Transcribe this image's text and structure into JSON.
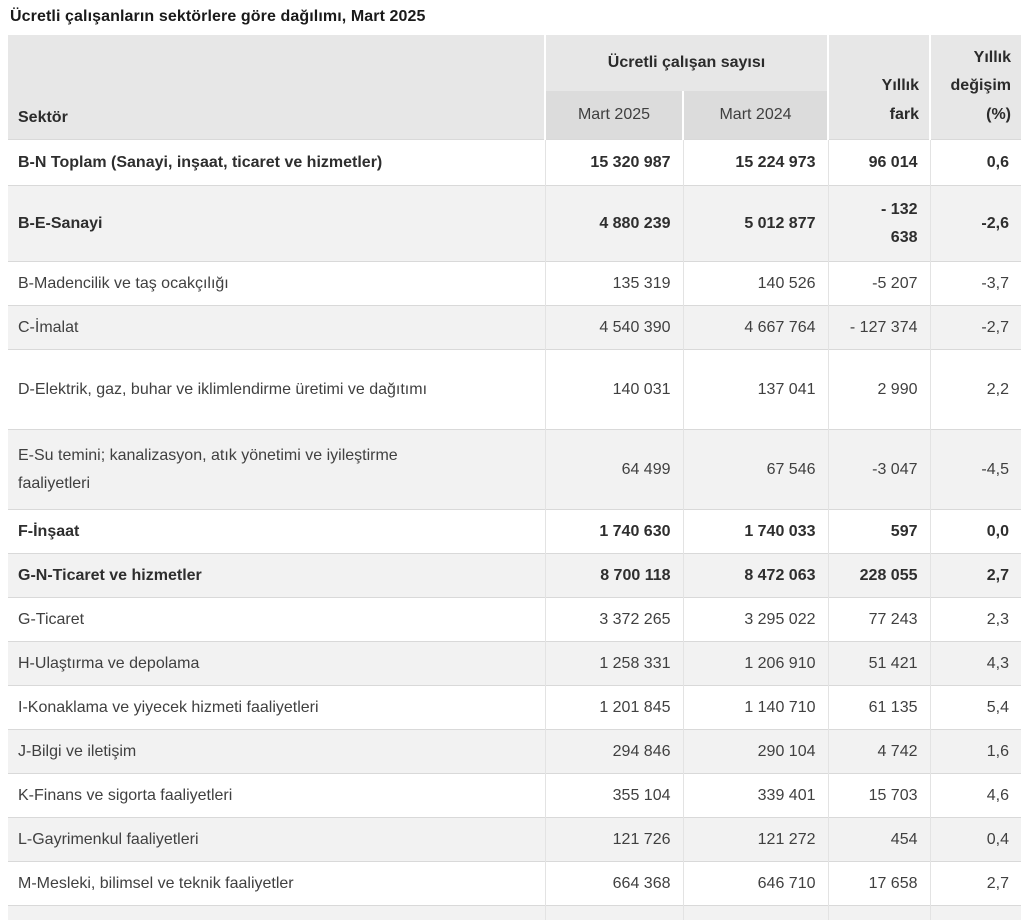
{
  "title": "Ücretli çalışanların sektörlere göre dağılımı, Mart 2025",
  "table": {
    "header": {
      "sector": "Sektör",
      "group": "Ücretli çalışan sayısı",
      "mart_2025": "Mart 2025",
      "mart_2024": "Mart 2024",
      "yillik_fark": "Yıllık\nfark",
      "yillik_degisim": "Yıllık\ndeğişim\n(%)"
    },
    "rows": [
      {
        "sector": "B-N Toplam (Sanayi, inşaat, ticaret ve hizmetler)",
        "mart_2025": "15 320 987",
        "mart_2024": "15 224 973",
        "yillik_fark": "96 014",
        "yillik_degisim": "0,6",
        "bold": true
      },
      {
        "sector": "B-E-Sanayi",
        "mart_2025": "4 880 239",
        "mart_2024": "5 012 877",
        "yillik_fark": "- 132\n638",
        "yillik_degisim": "-2,6",
        "bold": true
      },
      {
        "sector": "B-Madencilik ve taş ocakçılığı",
        "mart_2025": "135 319",
        "mart_2024": "140 526",
        "yillik_fark": "-5 207",
        "yillik_degisim": "-3,7",
        "bold": false
      },
      {
        "sector": "C-İmalat",
        "mart_2025": "4 540 390",
        "mart_2024": "4 667 764",
        "yillik_fark": "- 127 374",
        "yillik_degisim": "-2,7",
        "bold": false
      },
      {
        "sector": "D-Elektrik, gaz, buhar ve iklimlendirme üretimi ve dağıtımı",
        "mart_2025": "140 031",
        "mart_2024": "137 041",
        "yillik_fark": "2 990",
        "yillik_degisim": "2,2",
        "bold": false
      },
      {
        "sector": "E-Su temini; kanalizasyon, atık yönetimi ve iyileştirme faaliyetleri",
        "mart_2025": "64 499",
        "mart_2024": "67 546",
        "yillik_fark": "-3 047",
        "yillik_degisim": "-4,5",
        "bold": false
      },
      {
        "sector": "F-İnşaat",
        "mart_2025": "1 740 630",
        "mart_2024": "1 740 033",
        "yillik_fark": "597",
        "yillik_degisim": "0,0",
        "bold": true
      },
      {
        "sector": "G-N-Ticaret ve hizmetler",
        "mart_2025": "8 700 118",
        "mart_2024": "8 472 063",
        "yillik_fark": "228 055",
        "yillik_degisim": "2,7",
        "bold": true
      },
      {
        "sector": "G-Ticaret",
        "mart_2025": "3 372 265",
        "mart_2024": "3 295 022",
        "yillik_fark": "77 243",
        "yillik_degisim": "2,3",
        "bold": false
      },
      {
        "sector": "H-Ulaştırma ve depolama",
        "mart_2025": "1 258 331",
        "mart_2024": "1 206 910",
        "yillik_fark": "51 421",
        "yillik_degisim": "4,3",
        "bold": false
      },
      {
        "sector": "I-Konaklama ve yiyecek hizmeti faaliyetleri",
        "mart_2025": "1 201 845",
        "mart_2024": "1 140 710",
        "yillik_fark": "61 135",
        "yillik_degisim": "5,4",
        "bold": false
      },
      {
        "sector": "J-Bilgi ve iletişim",
        "mart_2025": "294 846",
        "mart_2024": "290 104",
        "yillik_fark": "4 742",
        "yillik_degisim": "1,6",
        "bold": false
      },
      {
        "sector": "K-Finans ve sigorta faaliyetleri",
        "mart_2025": "355 104",
        "mart_2024": "339 401",
        "yillik_fark": "15 703",
        "yillik_degisim": "4,6",
        "bold": false
      },
      {
        "sector": "L-Gayrimenkul faaliyetleri",
        "mart_2025": "121 726",
        "mart_2024": "121 272",
        "yillik_fark": "454",
        "yillik_degisim": "0,4",
        "bold": false
      },
      {
        "sector": "M-Mesleki, bilimsel ve teknik faaliyetler",
        "mart_2025": "664 368",
        "mart_2024": "646 710",
        "yillik_fark": "17 658",
        "yillik_degisim": "2,7",
        "bold": false
      }
    ]
  },
  "colors": {
    "header_bg": "#e7e7e7",
    "subheader_bg": "#dcdcdc",
    "alt_row_bg": "#f2f2f2",
    "row_border": "#d9d9d9",
    "column_border": "#e3e3e3",
    "text": "#404040",
    "title_text": "#1a1a1a"
  }
}
